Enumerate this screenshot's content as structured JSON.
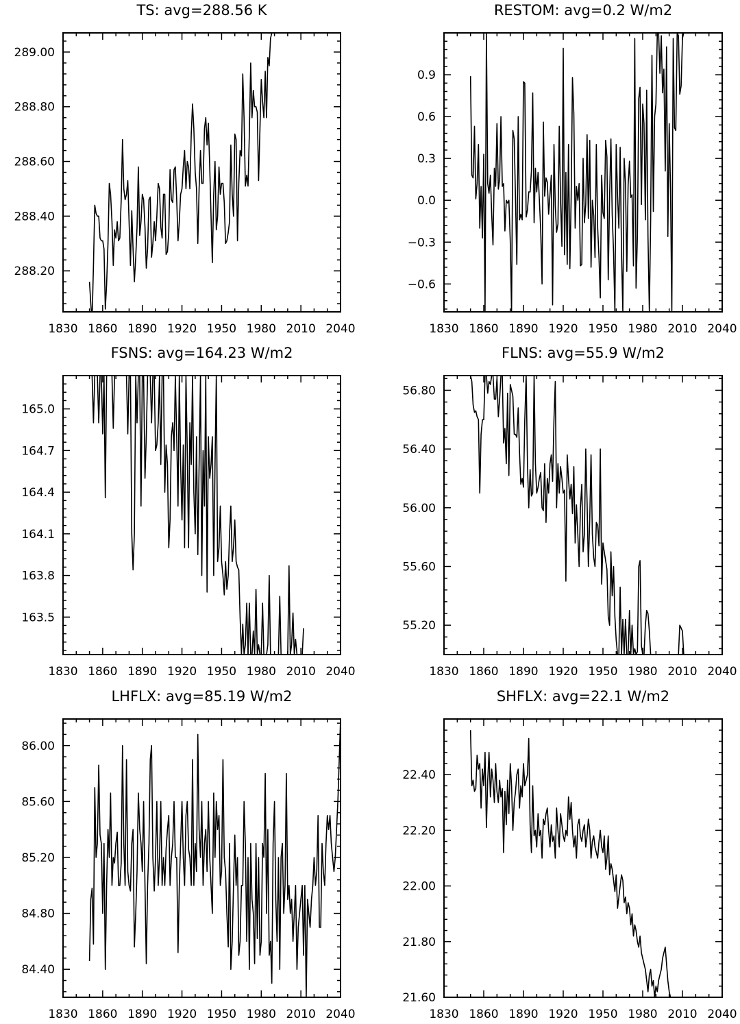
{
  "chart_data": [
    {
      "type": "line",
      "title": "TS: avg=288.56 K",
      "xlabel": "",
      "ylabel": "",
      "xlim": [
        1830,
        2040
      ],
      "ylim": [
        288.05,
        289.07
      ],
      "xticks": [
        1830,
        1860,
        1890,
        1920,
        1950,
        1980,
        2010,
        2040
      ],
      "yticks": [
        288.2,
        288.4,
        288.6,
        288.8,
        289.0
      ],
      "ytick_labels": [
        "288.20",
        "288.40",
        "288.60",
        "288.80",
        "289.00"
      ],
      "grid": false,
      "x_start": 1850,
      "x_step": 1,
      "values": [
        288.16,
        288.08,
        288.02,
        288.22,
        288.44,
        288.41,
        288.4,
        288.4,
        288.32,
        288.31,
        288.31,
        288.28,
        288.06,
        288.15,
        288.3,
        288.52,
        288.48,
        288.38,
        288.22,
        288.35,
        288.32,
        288.38,
        288.31,
        288.32,
        288.46,
        288.68,
        288.5,
        288.46,
        288.48,
        288.53,
        288.38,
        288.22,
        288.42,
        288.28,
        288.16,
        288.25,
        288.36,
        288.58,
        288.33,
        288.38,
        288.48,
        288.46,
        288.36,
        288.21,
        288.28,
        288.46,
        288.47,
        288.25,
        288.3,
        288.38,
        288.31,
        288.4,
        288.52,
        288.5,
        288.36,
        288.32,
        288.48,
        288.48,
        288.26,
        288.27,
        288.34,
        288.57,
        288.46,
        288.45,
        288.57,
        288.58,
        288.46,
        288.31,
        288.38,
        288.48,
        288.5,
        288.58,
        288.64,
        288.5,
        288.6,
        288.58,
        288.5,
        288.7,
        288.81,
        288.72,
        288.56,
        288.5,
        288.3,
        288.5,
        288.64,
        288.52,
        288.52,
        288.72,
        288.76,
        288.66,
        288.74,
        288.58,
        288.4,
        288.23,
        288.48,
        288.6,
        288.35,
        288.4,
        288.58,
        288.48,
        288.52,
        288.52,
        288.45,
        288.3,
        288.31,
        288.34,
        288.38,
        288.66,
        288.48,
        288.4,
        288.7,
        288.68,
        288.31,
        288.52,
        288.64,
        288.62,
        288.92,
        288.76,
        288.51,
        288.55,
        288.51,
        288.7,
        288.96,
        288.76,
        288.86,
        288.8,
        288.8,
        288.78,
        288.53,
        288.72,
        288.9,
        288.82,
        288.76,
        288.93,
        288.76,
        288.98,
        288.95,
        289.05,
        289.07
      ],
      "values_note": ""
    },
    {
      "type": "line",
      "title": "RESTOM: avg=0.2 W/m2",
      "xlabel": "",
      "ylabel": "",
      "xlim": [
        1830,
        2040
      ],
      "ylim": [
        -0.8,
        1.2
      ],
      "xticks": [
        1830,
        1860,
        1890,
        1920,
        1950,
        1980,
        2010,
        2040
      ],
      "yticks": [
        -0.6,
        -0.3,
        0.0,
        0.3,
        0.6,
        0.9
      ],
      "ytick_labels": [
        "−0.6",
        "−0.3",
        "0.0",
        "0.3",
        "0.6",
        "0.9"
      ],
      "grid": false,
      "x_start": 1850,
      "x_step": 1,
      "values": [
        0.89,
        0.18,
        0.16,
        0.53,
        0.01,
        0.12,
        0.4,
        -0.2,
        0.1,
        -0.27,
        0.33,
        -0.8,
        1.2,
        0.12,
        0.05,
        0.18,
        -0.1,
        -0.32,
        0.23,
        0.1,
        0.55,
        0.08,
        0.15,
        0.6,
        0.1,
        0.12,
        -0.22,
        0.0,
        -0.02,
        0.0,
        -0.29,
        -0.8,
        0.5,
        0.44,
        0.0,
        -0.46,
        0.6,
        -0.14,
        -0.1,
        -0.14,
        0.85,
        0.84,
        -0.12,
        -0.07,
        0.06,
        0.06,
        0.21,
        0.77,
        -0.16,
        0.23,
        0.06,
        0.2,
        0.0,
        -0.21,
        -0.6,
        0.56,
        0.03,
        0.16,
        0.13,
        -0.1,
        0.04,
        0.18,
        -0.75,
        0.4,
        -0.04,
        -0.23,
        -0.17,
        0.53,
        0.0,
        -0.33,
        1.09,
        -0.39,
        0.2,
        -0.46,
        0.4,
        -0.49,
        0.02,
        0.88,
        0.62,
        -0.2,
        0.1,
        0.0,
        0.12,
        -0.47,
        -0.46,
        0.3,
        -0.16,
        -0.03,
        0.47,
        -0.13,
        0.43,
        -0.48,
        0.0,
        -0.11,
        -0.41,
        0.4,
        -0.2,
        -0.41,
        -0.7,
        0.18,
        -0.09,
        -0.13,
        0.43,
        0.31,
        -0.57,
        0.03,
        0.44,
        -0.1,
        -0.38,
        -0.8,
        0.4,
        0.03,
        -0.2,
        0.38,
        -0.38,
        -0.8,
        0.3,
        0.12,
        -0.51,
        0.11,
        0.28,
        0.02,
        0.04,
        -0.47,
        1.16,
        -0.63,
        -0.25,
        0.73,
        0.81,
        -0.03,
        0.69,
        0.55,
        -0.14,
        0.79,
        -0.26,
        -0.8,
        -0.14,
        1.04,
        -0.08,
        0.6,
        0.69,
        1.2,
        1.2,
        0.91,
        1.18,
        0.77,
        0.94,
        0.21,
        1.1,
        -0.26,
        0.55,
        0.08,
        -0.8,
        1.16,
        0.52,
        0.5,
        1.2,
        1.18,
        0.76,
        0.82,
        1.16,
        1.2
      ],
      "values_note": ""
    },
    {
      "type": "line",
      "title": "FSNS: avg=164.23 W/m2",
      "xlabel": "",
      "ylabel": "",
      "xlim": [
        1830,
        2040
      ],
      "ylim": [
        163.23,
        165.24
      ],
      "xticks": [
        1830,
        1860,
        1890,
        1920,
        1950,
        1980,
        2010,
        2040
      ],
      "yticks": [
        163.5,
        163.8,
        164.1,
        164.4,
        164.7,
        165.0
      ],
      "ytick_labels": [
        "163.5",
        "163.8",
        "164.1",
        "164.4",
        "164.7",
        "165.0"
      ],
      "grid": false,
      "x_start": 1850,
      "x_step": 1,
      "values": [
        165.24,
        165.24,
        165.24,
        164.9,
        165.24,
        165.24,
        165.24,
        164.9,
        165.24,
        165.24,
        164.82,
        165.24,
        164.36,
        165.24,
        165.24,
        165.24,
        165.24,
        165.24,
        164.86,
        165.24,
        165.24,
        165.24,
        165.24,
        165.24,
        165.24,
        165.24,
        165.24,
        165.24,
        165.24,
        164.82,
        165.24,
        165.24,
        164.1,
        163.84,
        164.1,
        165.24,
        164.9,
        165.24,
        165.24,
        164.3,
        165.24,
        165.24,
        164.5,
        164.8,
        165.24,
        165.24,
        165.24,
        164.9,
        165.24,
        165.24,
        164.7,
        164.74,
        164.9,
        165.24,
        164.6,
        165.24,
        165.24,
        164.4,
        164.74,
        164.6,
        164.0,
        164.2,
        164.8,
        164.9,
        164.7,
        165.24,
        164.8,
        164.3,
        165.24,
        164.6,
        164.2,
        164.74,
        164.0,
        165.24,
        164.7,
        164.0,
        164.9,
        164.6,
        165.24,
        164.4,
        164.1,
        164.8,
        163.95,
        164.6,
        165.24,
        163.8,
        164.7,
        164.3,
        165.24,
        163.68,
        164.8,
        164.5,
        164.6,
        164.8,
        163.8,
        164.6,
        165.24,
        163.9,
        164.0,
        164.3,
        163.9,
        163.8,
        163.66,
        163.9,
        163.7,
        163.8,
        164.1,
        164.3,
        163.9,
        164.0,
        164.2,
        163.9,
        163.86,
        163.84,
        163.5,
        163.23,
        163.45,
        163.23,
        163.3,
        163.6,
        163.23,
        163.6,
        163.23,
        163.23,
        163.4,
        163.23,
        163.7,
        163.23,
        163.3,
        163.23,
        163.23,
        163.6,
        163.23,
        163.23,
        163.23,
        163.3,
        163.8,
        163.23,
        163.23,
        163.23,
        163.23,
        163.23,
        163.23,
        163.23,
        163.65,
        163.23,
        163.23,
        163.23,
        163.23,
        163.23,
        163.23,
        163.87,
        163.23,
        163.3,
        163.53,
        163.23,
        163.34,
        163.23,
        163.23,
        163.23,
        163.23,
        163.23,
        163.42
      ],
      "values_note": ""
    },
    {
      "type": "line",
      "title": "FLNS: avg=55.9 W/m2",
      "xlabel": "",
      "ylabel": "",
      "xlim": [
        1830,
        2040
      ],
      "ylim": [
        55.0,
        56.9
      ],
      "xticks": [
        1830,
        1860,
        1890,
        1920,
        1950,
        1980,
        2010,
        2040
      ],
      "yticks": [
        55.2,
        55.6,
        56.0,
        56.4,
        56.8
      ],
      "ytick_labels": [
        "55.20",
        "55.60",
        "56.00",
        "56.40",
        "56.80"
      ],
      "grid": false,
      "x_start": 1850,
      "x_step": 1,
      "values": [
        56.9,
        56.86,
        56.7,
        56.65,
        56.66,
        56.62,
        56.6,
        56.1,
        56.5,
        56.6,
        56.6,
        56.9,
        56.9,
        56.78,
        56.86,
        56.84,
        56.9,
        56.9,
        56.74,
        56.74,
        56.88,
        56.62,
        56.74,
        56.9,
        56.9,
        56.44,
        56.54,
        56.3,
        56.78,
        56.22,
        56.84,
        56.8,
        56.76,
        56.5,
        56.5,
        56.48,
        56.68,
        56.38,
        56.16,
        56.2,
        56.14,
        56.6,
        56.9,
        56.3,
        56.0,
        56.26,
        56.08,
        56.1,
        56.9,
        56.3,
        56.1,
        56.14,
        56.2,
        56.24,
        56.0,
        55.98,
        56.3,
        55.9,
        56.2,
        56.1,
        56.3,
        56.36,
        56.18,
        56.6,
        56.86,
        56.0,
        56.3,
        56.1,
        56.28,
        56.2,
        56.1,
        56.12,
        55.5,
        56.36,
        56.2,
        56.06,
        56.16,
        55.96,
        56.28,
        55.76,
        56.02,
        55.82,
        55.6,
        56.0,
        56.16,
        55.7,
        55.82,
        56.4,
        56.04,
        55.6,
        55.92,
        56.36,
        55.82,
        55.66,
        55.6,
        55.9,
        55.88,
        55.74,
        56.4,
        55.48,
        55.76,
        55.7,
        55.64,
        55.58,
        55.26,
        55.2,
        55.7,
        55.4,
        55.6,
        55.26,
        55.1,
        55.0,
        55.0,
        55.46,
        55.0,
        55.24,
        55.0,
        55.24,
        55.0,
        55.0,
        55.3,
        55.0,
        55.2,
        55.0,
        55.04,
        55.0,
        55.02,
        55.6,
        55.64,
        55.06,
        55.0,
        55.0,
        55.2,
        55.3,
        55.28,
        55.16,
        55.0,
        55.0,
        55.0,
        55.0,
        55.0,
        55.0,
        55.0,
        55.0,
        55.0,
        55.0,
        55.0,
        55.0,
        55.0,
        55.0,
        55.0,
        55.0,
        55.0,
        55.0,
        55.0,
        55.0,
        55.0,
        55.0,
        55.2,
        55.18,
        55.16,
        55.0,
        55.0,
        55.0,
        55.0,
        55.0,
        55.0
      ],
      "values_note": ""
    },
    {
      "type": "line",
      "title": "LHFLX: avg=85.19 W/m2",
      "xlabel": "",
      "ylabel": "",
      "xlim": [
        1830,
        2040
      ],
      "ylim": [
        84.2,
        86.19
      ],
      "xticks": [
        1830,
        1860,
        1890,
        1920,
        1950,
        1980,
        2010,
        2040
      ],
      "yticks": [
        84.4,
        84.8,
        85.2,
        85.6,
        86.0
      ],
      "ytick_labels": [
        "84.40",
        "84.80",
        "85.20",
        "85.60",
        "86.00"
      ],
      "grid": false,
      "x_start": 1850,
      "x_step": 1,
      "values": [
        84.46,
        84.9,
        84.98,
        84.58,
        85.7,
        85.2,
        85.3,
        85.86,
        85.36,
        85.3,
        84.8,
        85.3,
        84.4,
        85.0,
        85.4,
        85.2,
        85.66,
        85.0,
        85.2,
        85.16,
        85.3,
        85.38,
        85.0,
        85.0,
        85.16,
        86.0,
        85.3,
        85.0,
        85.9,
        85.1,
        85.0,
        84.96,
        85.3,
        85.4,
        84.56,
        84.8,
        85.1,
        85.66,
        85.4,
        85.3,
        85.1,
        85.6,
        85.0,
        84.44,
        85.0,
        85.3,
        85.9,
        86.0,
        85.2,
        84.96,
        85.2,
        85.6,
        85.0,
        85.2,
        85.6,
        85.0,
        85.2,
        85.0,
        85.26,
        85.4,
        85.5,
        85.0,
        85.2,
        85.3,
        85.6,
        85.2,
        85.2,
        84.52,
        85.0,
        85.3,
        85.6,
        85.2,
        85.0,
        85.5,
        85.6,
        85.26,
        85.2,
        85.0,
        85.9,
        85.0,
        85.3,
        85.1,
        86.08,
        85.4,
        85.2,
        85.6,
        85.0,
        85.3,
        85.4,
        85.1,
        85.6,
        85.2,
        85.0,
        84.8,
        85.66,
        85.2,
        85.6,
        85.4,
        85.5,
        85.0,
        85.1,
        85.9,
        85.2,
        85.1,
        84.8,
        84.56,
        85.3,
        84.4,
        84.6,
        85.0,
        85.36,
        85.0,
        85.2,
        84.5,
        84.6,
        85.0,
        85.0,
        85.6,
        85.3,
        84.6,
        85.2,
        84.4,
        85.3,
        84.9,
        84.8,
        84.44,
        85.3,
        84.62,
        85.2,
        84.5,
        84.6,
        85.3,
        85.2,
        85.8,
        84.8,
        85.4,
        84.5,
        84.6,
        84.3,
        85.3,
        85.6,
        84.9,
        84.6,
        85.2,
        84.4,
        85.2,
        85.3,
        84.8,
        85.0,
        85.8,
        84.9,
        85.0,
        84.8,
        84.9,
        84.6,
        84.8,
        85.0,
        84.4,
        84.7,
        84.8,
        84.9,
        85.0,
        84.5,
        85.0,
        84.2,
        84.9,
        84.8,
        84.7,
        84.9,
        85.0,
        85.2,
        85.0,
        85.1,
        85.5,
        84.7,
        84.7,
        85.3,
        85.1,
        85.0,
        85.3,
        85.5,
        85.4,
        85.5,
        85.3,
        85.2,
        85.1,
        85.2,
        85.4,
        85.6,
        85.9,
        86.19,
        85.3,
        85.17,
        85.52
      ],
      "values_note": ""
    },
    {
      "type": "line",
      "title": "SHFLX: avg=22.1 W/m2",
      "xlabel": "",
      "ylabel": "",
      "xlim": [
        1830,
        2040
      ],
      "ylim": [
        21.6,
        22.6
      ],
      "xticks": [
        1830,
        1860,
        1890,
        1920,
        1950,
        1980,
        2010,
        2040
      ],
      "yticks": [
        21.6,
        21.8,
        22.0,
        22.2,
        22.4
      ],
      "ytick_labels": [
        "21.60",
        "21.80",
        "22.00",
        "22.20",
        "22.40"
      ],
      "grid": false,
      "x_start": 1850,
      "x_step": 1,
      "values": [
        22.56,
        22.36,
        22.38,
        22.34,
        22.35,
        22.47,
        22.42,
        22.44,
        22.28,
        22.42,
        22.36,
        22.48,
        22.21,
        22.38,
        22.48,
        22.32,
        22.42,
        22.38,
        22.3,
        22.44,
        22.34,
        22.3,
        22.38,
        22.32,
        22.35,
        22.12,
        22.34,
        22.22,
        22.38,
        22.26,
        22.44,
        22.36,
        22.2,
        22.3,
        22.34,
        22.4,
        22.42,
        22.28,
        22.36,
        22.32,
        22.44,
        22.36,
        22.38,
        22.4,
        22.53,
        22.22,
        22.12,
        22.36,
        22.18,
        22.2,
        22.14,
        22.26,
        22.18,
        22.2,
        22.1,
        22.24,
        22.22,
        22.26,
        22.28,
        22.2,
        22.14,
        22.22,
        22.16,
        22.18,
        22.1,
        22.28,
        22.2,
        22.14,
        22.26,
        22.22,
        22.18,
        22.16,
        22.2,
        22.18,
        22.32,
        22.24,
        22.3,
        22.2,
        22.14,
        22.18,
        22.1,
        22.22,
        22.24,
        22.18,
        22.16,
        22.2,
        22.22,
        22.14,
        22.18,
        22.24,
        22.2,
        22.1,
        22.16,
        22.18,
        22.14,
        22.12,
        22.1,
        22.16,
        22.2,
        22.14,
        22.12,
        22.18,
        22.06,
        22.1,
        22.18,
        22.04,
        22.08,
        22.06,
        22.02,
        21.98,
        22.04,
        21.92,
        21.96,
        22.0,
        22.04,
        22.02,
        21.94,
        21.96,
        21.9,
        21.94,
        21.92,
        21.86,
        21.9,
        21.82,
        21.86,
        21.84,
        21.8,
        21.78,
        21.82,
        21.76,
        21.74,
        21.72,
        21.7,
        21.66,
        21.62,
        21.68,
        21.7,
        21.64,
        21.66,
        21.6,
        21.64,
        21.62,
        21.66,
        21.68,
        21.7,
        21.74,
        21.76,
        21.78,
        21.72,
        21.66,
        21.62,
        21.6,
        21.6,
        21.6,
        21.6,
        21.6,
        21.6,
        21.6,
        21.6
      ],
      "values_note": ""
    }
  ]
}
